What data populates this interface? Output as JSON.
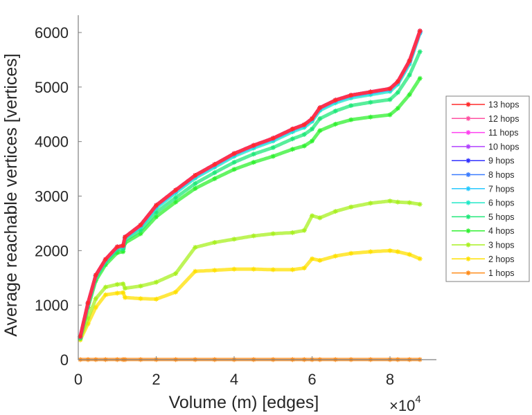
{
  "chart_data": {
    "type": "line",
    "title": "",
    "xlabel": "Volume (m) [edges]",
    "ylabel": "Average reachable vertices [vertices]",
    "x_exponent_label": "×10",
    "x_exponent_power": "4",
    "xlim": [
      0,
      9.2
    ],
    "ylim": [
      0,
      6300
    ],
    "xticks": [
      0,
      2,
      4,
      6,
      8
    ],
    "xtick_labels": [
      "0",
      "2",
      "4",
      "6",
      "8"
    ],
    "yticks": [
      0,
      1000,
      2000,
      3000,
      4000,
      5000,
      6000
    ],
    "ytick_labels": [
      "0",
      "1000",
      "2000",
      "3000",
      "4000",
      "5000",
      "6000"
    ],
    "grid": false,
    "legend_position": "right-outside",
    "marker": "asterisk",
    "x": [
      0.05,
      0.25,
      0.45,
      0.7,
      1.0,
      1.15,
      1.2,
      1.6,
      2.0,
      2.5,
      3.0,
      3.5,
      4.0,
      4.5,
      5.0,
      5.5,
      5.8,
      6.0,
      6.2,
      6.6,
      7.0,
      7.5,
      8.0,
      8.2,
      8.5,
      8.77
    ],
    "series": [
      {
        "name": "13 hops",
        "color": "#ff2a2a",
        "values": [
          420,
          1040,
          1550,
          1840,
          2070,
          2090,
          2250,
          2470,
          2830,
          3110,
          3380,
          3580,
          3780,
          3930,
          4060,
          4230,
          4310,
          4420,
          4620,
          4760,
          4850,
          4910,
          4970,
          5100,
          5480,
          6030
        ]
      },
      {
        "name": "12 hops",
        "color": "#ff4fa0",
        "values": [
          420,
          1040,
          1550,
          1840,
          2070,
          2090,
          2250,
          2470,
          2830,
          3110,
          3380,
          3580,
          3780,
          3930,
          4060,
          4230,
          4310,
          4420,
          4620,
          4760,
          4850,
          4910,
          4970,
          5100,
          5480,
          6030
        ]
      },
      {
        "name": "11 hops",
        "color": "#ff3ff0",
        "values": [
          420,
          1040,
          1550,
          1840,
          2070,
          2090,
          2250,
          2470,
          2830,
          3110,
          3380,
          3580,
          3780,
          3930,
          4060,
          4230,
          4310,
          4420,
          4620,
          4760,
          4850,
          4910,
          4970,
          5100,
          5480,
          6030
        ]
      },
      {
        "name": "10 hops",
        "color": "#b040ff",
        "values": [
          420,
          1040,
          1550,
          1840,
          2070,
          2090,
          2250,
          2470,
          2830,
          3110,
          3380,
          3580,
          3780,
          3930,
          4060,
          4230,
          4310,
          4420,
          4620,
          4760,
          4850,
          4910,
          4970,
          5100,
          5480,
          6030
        ]
      },
      {
        "name": "9 hops",
        "color": "#3030ff",
        "values": [
          420,
          1040,
          1550,
          1840,
          2070,
          2090,
          2250,
          2470,
          2830,
          3110,
          3380,
          3580,
          3780,
          3930,
          4060,
          4230,
          4310,
          4420,
          4620,
          4760,
          4850,
          4910,
          4970,
          5100,
          5480,
          6030
        ]
      },
      {
        "name": "8 hops",
        "color": "#3a7bff",
        "values": [
          420,
          1040,
          1550,
          1840,
          2070,
          2090,
          2250,
          2470,
          2830,
          3110,
          3380,
          3580,
          3780,
          3930,
          4060,
          4230,
          4310,
          4420,
          4620,
          4760,
          4850,
          4910,
          4970,
          5100,
          5480,
          6020
        ]
      },
      {
        "name": "7 hops",
        "color": "#25c8ff",
        "values": [
          420,
          1030,
          1540,
          1830,
          2060,
          2080,
          2240,
          2450,
          2810,
          3090,
          3360,
          3560,
          3760,
          3910,
          4040,
          4210,
          4290,
          4400,
          4600,
          4740,
          4830,
          4890,
          4950,
          5080,
          5450,
          6000
        ]
      },
      {
        "name": "6 hops",
        "color": "#20e8c8",
        "values": [
          410,
          1020,
          1530,
          1820,
          2050,
          2070,
          2230,
          2430,
          2780,
          3060,
          3330,
          3530,
          3730,
          3880,
          4010,
          4180,
          4260,
          4370,
          4570,
          4710,
          4800,
          4860,
          4920,
          5050,
          5420,
          5990
        ]
      },
      {
        "name": "5 hops",
        "color": "#20e87a",
        "values": [
          400,
          1000,
          1500,
          1790,
          2010,
          2030,
          2190,
          2370,
          2700,
          2970,
          3230,
          3430,
          3620,
          3770,
          3890,
          4050,
          4130,
          4230,
          4420,
          4560,
          4660,
          4720,
          4770,
          4900,
          5220,
          5650
        ]
      },
      {
        "name": "4 hops",
        "color": "#30f030",
        "values": [
          390,
          960,
          1450,
          1740,
          1960,
          1980,
          2140,
          2310,
          2620,
          2890,
          3140,
          3320,
          3490,
          3620,
          3730,
          3860,
          3920,
          4010,
          4200,
          4320,
          4400,
          4450,
          4490,
          4610,
          4860,
          5160
        ]
      },
      {
        "name": "3 hops",
        "color": "#a8f020",
        "values": [
          380,
          760,
          1120,
          1330,
          1380,
          1390,
          1310,
          1350,
          1420,
          1580,
          2060,
          2150,
          2210,
          2270,
          2310,
          2330,
          2370,
          2640,
          2600,
          2720,
          2800,
          2870,
          2910,
          2890,
          2880,
          2850
        ]
      },
      {
        "name": "2 hops",
        "color": "#ffe000",
        "values": [
          360,
          660,
          960,
          1190,
          1220,
          1230,
          1140,
          1120,
          1110,
          1240,
          1620,
          1640,
          1660,
          1660,
          1650,
          1650,
          1680,
          1850,
          1820,
          1900,
          1950,
          1980,
          2000,
          1980,
          1930,
          1850
        ]
      },
      {
        "name": "1 hops",
        "color": "#ff8c1a",
        "values": [
          2,
          2,
          2,
          2,
          2,
          2,
          2,
          2,
          2,
          2,
          2,
          2,
          2,
          2,
          2,
          2,
          2,
          2,
          2,
          2,
          2,
          2,
          2,
          2,
          2,
          2
        ]
      }
    ]
  }
}
